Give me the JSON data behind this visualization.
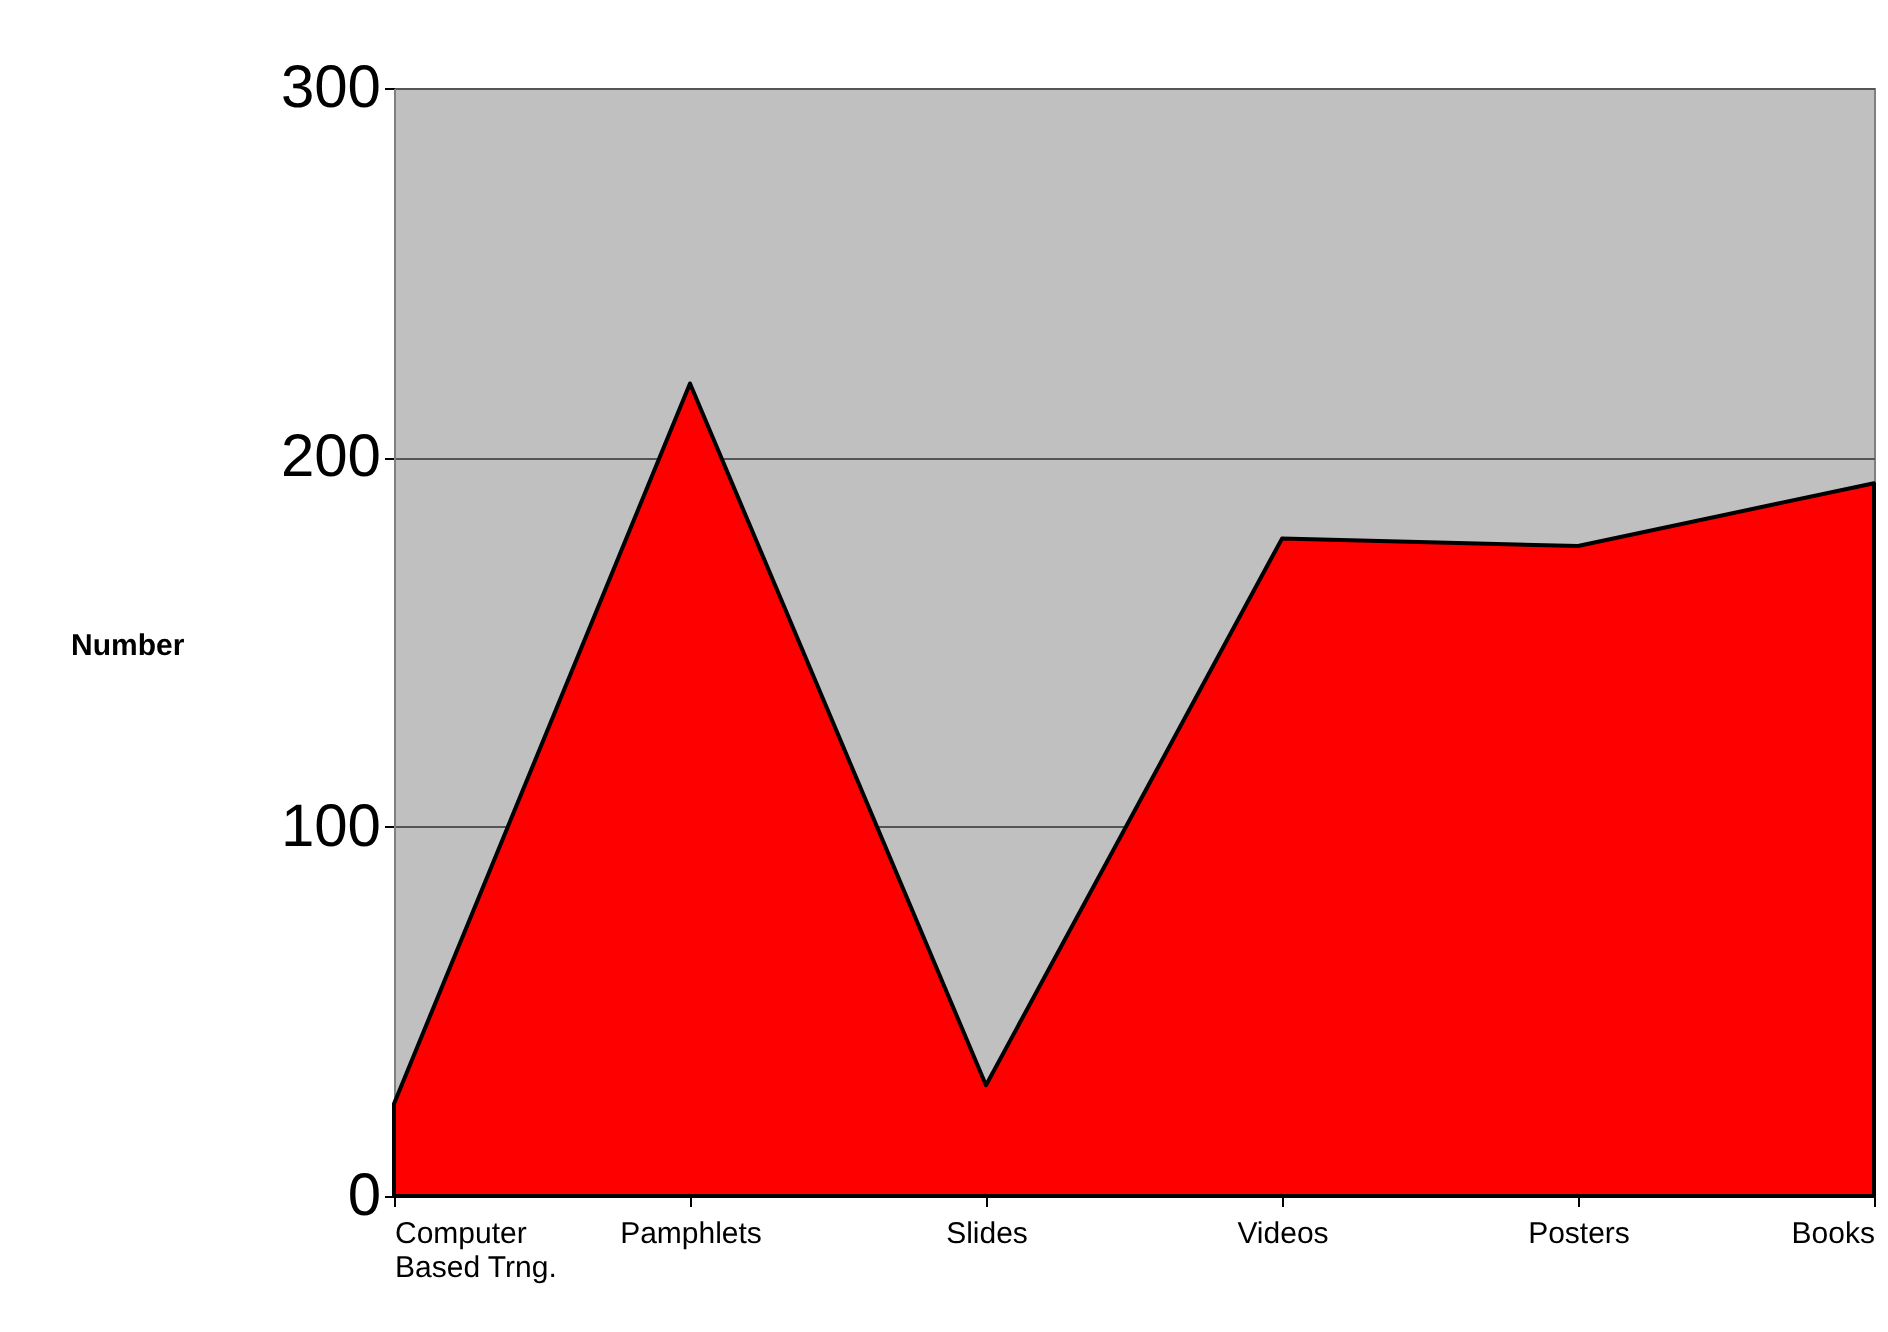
{
  "chart_data": {
    "type": "area",
    "ylabel": "Number",
    "categories": [
      "Computer Based Trng.",
      "Pamphlets",
      "Slides",
      "Videos",
      "Posters",
      "Books"
    ],
    "values": [
      25,
      220,
      30,
      178,
      176,
      193
    ],
    "color": "#ff0000",
    "ylim": [
      0,
      300
    ],
    "yticks": [
      0,
      100,
      200,
      300
    ],
    "grid": "y"
  }
}
